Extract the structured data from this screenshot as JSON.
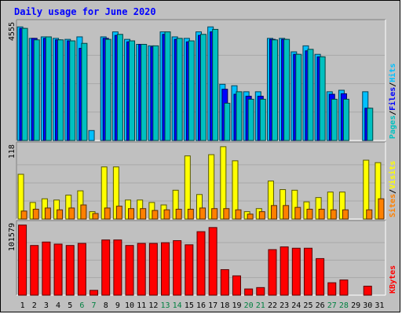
{
  "title": "Daily usage for June 2020",
  "chart_data": [
    {
      "type": "bar",
      "panel": "hits-files-pages",
      "categories": [
        "1",
        "2",
        "3",
        "4",
        "5",
        "6",
        "7",
        "8",
        "9",
        "10",
        "11",
        "12",
        "13",
        "14",
        "15",
        "16",
        "17",
        "18",
        "19",
        "20",
        "21",
        "22",
        "23",
        "24",
        "25",
        "26",
        "27",
        "28",
        "29",
        "30",
        "31"
      ],
      "weekend_days": [
        "6",
        "7",
        "13",
        "14",
        "20",
        "21",
        "27",
        "28"
      ],
      "max_label": "4555",
      "ylim": [
        0,
        4555
      ],
      "legend": [
        {
          "label": "Pages",
          "color": "#00c0c0"
        },
        {
          "label": "Files",
          "color": "#0000ff"
        },
        {
          "label": "Hits",
          "color": "#00c0ff"
        }
      ],
      "series": [
        {
          "name": "Hits",
          "color": "#00c0ff",
          "values": [
            4555,
            4095,
            4155,
            4095,
            4055,
            4155,
            400,
            4155,
            4355,
            4055,
            3855,
            3795,
            4355,
            4155,
            4095,
            4355,
            4555,
            2255,
            2195,
            1955,
            1955,
            4095,
            4095,
            3555,
            3795,
            3455,
            1955,
            2015,
            0,
            1955,
            0
          ]
        },
        {
          "name": "Files",
          "color": "#0000ff",
          "values": [
            4495,
            4095,
            4095,
            4035,
            3995,
            3695,
            0,
            4095,
            4215,
            3955,
            3855,
            3755,
            4255,
            4055,
            3955,
            4215,
            4355,
            2055,
            1855,
            1775,
            1775,
            4055,
            4055,
            3455,
            3595,
            3355,
            1855,
            1875,
            0,
            1295,
            0
          ]
        },
        {
          "name": "Pages",
          "color": "#00c0c0",
          "values": [
            4495,
            4035,
            4155,
            4035,
            3995,
            3895,
            0,
            4055,
            4255,
            3995,
            3855,
            3795,
            4355,
            4095,
            3995,
            4255,
            4455,
            1495,
            1955,
            1655,
            1655,
            4035,
            4055,
            3455,
            3655,
            3355,
            1655,
            1655,
            0,
            1295,
            0
          ]
        }
      ]
    },
    {
      "type": "bar",
      "panel": "visits-sites",
      "categories": [
        "1",
        "2",
        "3",
        "4",
        "5",
        "6",
        "7",
        "8",
        "9",
        "10",
        "11",
        "12",
        "13",
        "14",
        "15",
        "16",
        "17",
        "18",
        "19",
        "20",
        "21",
        "22",
        "23",
        "24",
        "25",
        "26",
        "27",
        "28",
        "29",
        "30",
        "31"
      ],
      "max_label": "118",
      "ylim": [
        0,
        118
      ],
      "legend": [
        {
          "label": "Sites",
          "color": "#ff8000"
        },
        {
          "label": "Visits",
          "color": "#ffff00"
        }
      ],
      "series": [
        {
          "name": "Visits",
          "color": "#ffff00",
          "values": [
            73,
            27,
            33,
            31,
            39,
            46,
            12,
            85,
            85,
            31,
            31,
            27,
            23,
            47,
            103,
            40,
            105,
            118,
            95,
            12,
            17,
            62,
            48,
            47,
            28,
            35,
            44,
            44,
            0,
            96,
            92
          ]
        },
        {
          "name": "Sites",
          "color": "#ff8000",
          "values": [
            13,
            16,
            18,
            15,
            18,
            23,
            9,
            18,
            21,
            17,
            17,
            14,
            15,
            16,
            16,
            18,
            17,
            17,
            15,
            8,
            12,
            22,
            22,
            19,
            16,
            16,
            15,
            15,
            0,
            15,
            33
          ]
        }
      ]
    },
    {
      "type": "bar",
      "panel": "kbytes",
      "categories": [
        "1",
        "2",
        "3",
        "4",
        "5",
        "6",
        "7",
        "8",
        "9",
        "10",
        "11",
        "12",
        "13",
        "14",
        "15",
        "16",
        "17",
        "18",
        "19",
        "20",
        "21",
        "22",
        "23",
        "24",
        "25",
        "26",
        "27",
        "28",
        "29",
        "30",
        "31"
      ],
      "max_label": "101579",
      "ylim": [
        0,
        101579
      ],
      "legend": [
        {
          "label": "KBytes",
          "color": "#ff0000"
        }
      ],
      "series": [
        {
          "name": "KBytes",
          "color": "#ff0000",
          "values": [
            101579,
            72000,
            77000,
            74000,
            72000,
            75000,
            7000,
            80000,
            80000,
            72000,
            75000,
            75000,
            76000,
            79000,
            73000,
            92000,
            98000,
            37000,
            28000,
            9000,
            11000,
            66000,
            70000,
            68000,
            68000,
            53000,
            18000,
            22000,
            0,
            13000,
            0
          ]
        }
      ]
    }
  ]
}
